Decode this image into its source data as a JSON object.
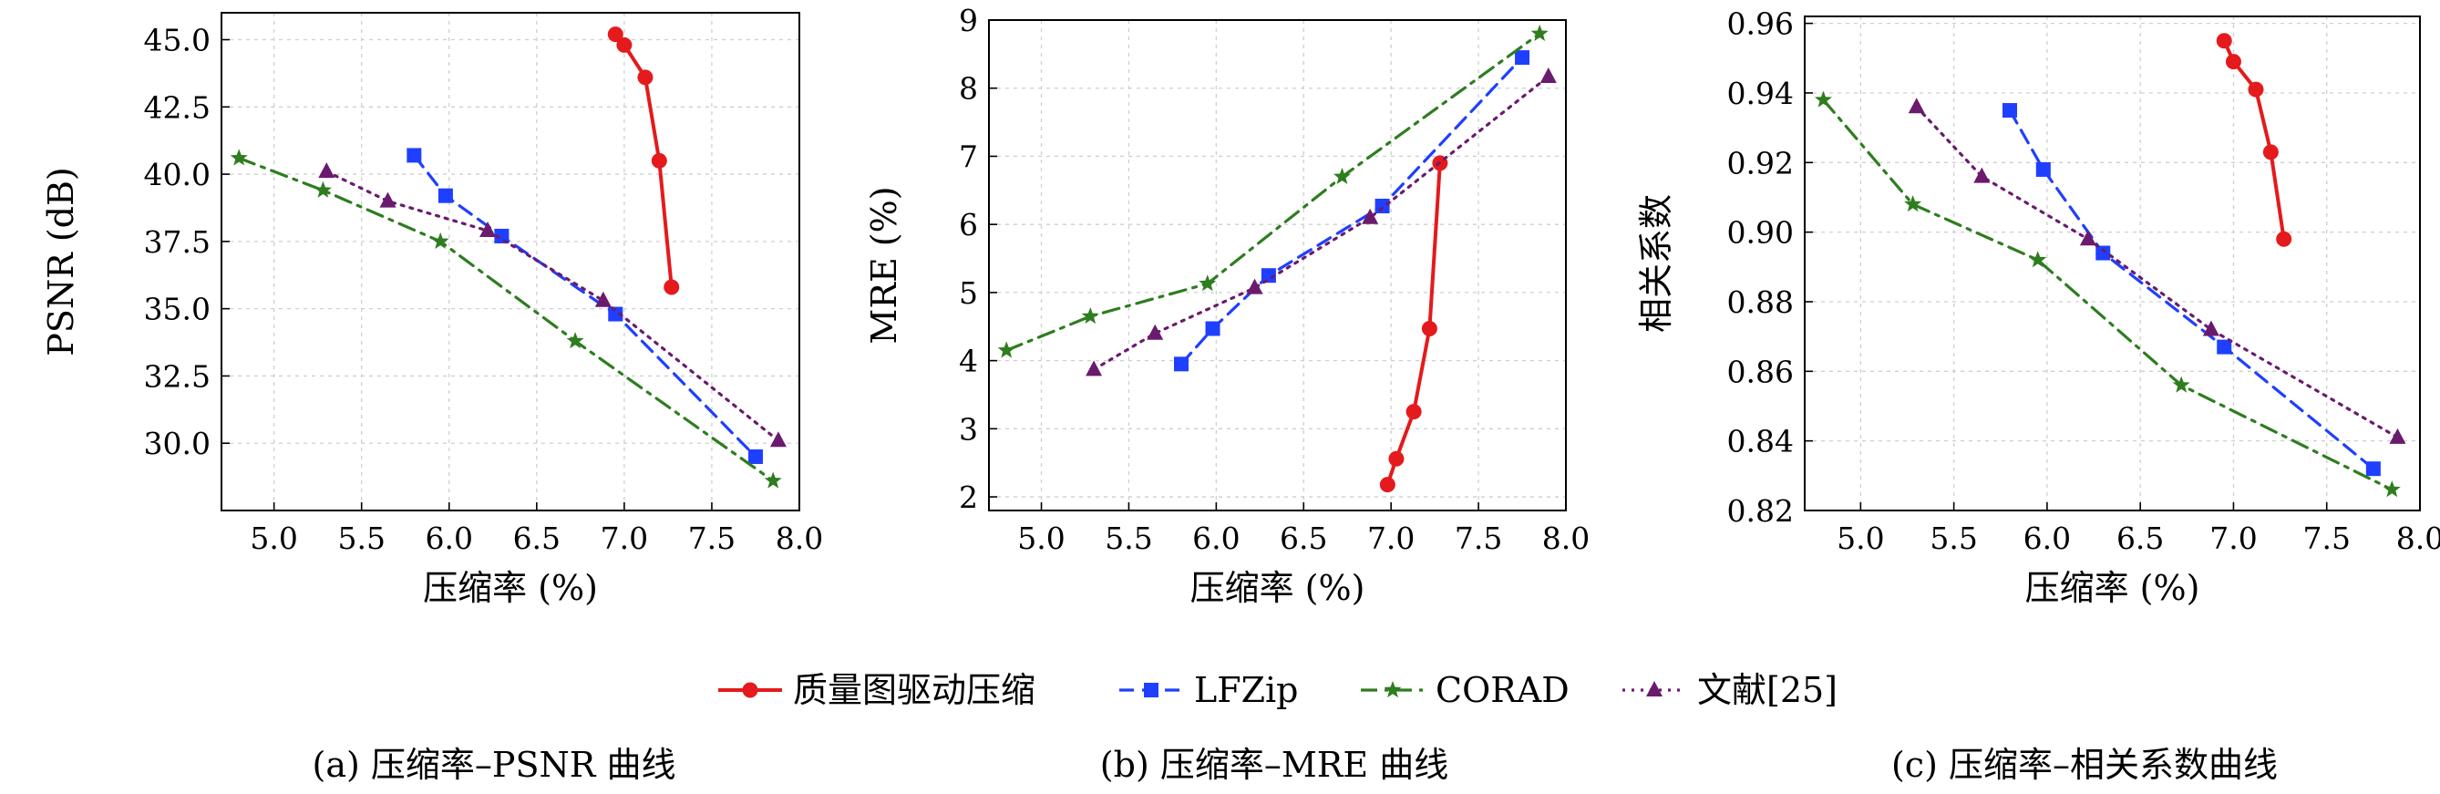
{
  "captions": [
    "(a) 压缩率–PSNR 曲线",
    "(b) 压缩率–MRE 曲线",
    "(c) 压缩率–相关系数曲线"
  ],
  "legend": [
    {
      "label": "质量图驱动压缩",
      "color": "#e41a1c",
      "marker": "circle",
      "dash": "solid"
    },
    {
      "label": "LFZip",
      "color": "#1f3fff",
      "marker": "square",
      "dash": "dashed"
    },
    {
      "label": "CORAD",
      "color": "#2e7d1f",
      "marker": "star",
      "dash": "dashdot"
    },
    {
      "label": "文献[25]",
      "color": "#6a1b6e",
      "marker": "triangle",
      "dash": "dotted"
    }
  ],
  "chart_data": [
    {
      "type": "line",
      "xlabel": "压缩率 (%)",
      "ylabel": "PSNR (dB)",
      "xlim": [
        4.7,
        8.0
      ],
      "ylim": [
        27.5,
        46.0
      ],
      "xticks": [
        "5.0",
        "5.5",
        "6.0",
        "6.5",
        "7.0",
        "7.5",
        "8.0"
      ],
      "yticks": [
        "30.0",
        "32.5",
        "35.0",
        "37.5",
        "40.0",
        "42.5",
        "45.0"
      ],
      "grid": true,
      "series": [
        {
          "name": "质量图驱动压缩",
          "x": [
            6.95,
            7.0,
            7.12,
            7.2,
            7.27
          ],
          "y": [
            45.2,
            44.8,
            43.6,
            40.5,
            35.8
          ]
        },
        {
          "name": "LFZip",
          "x": [
            5.8,
            5.98,
            6.3,
            6.95,
            7.75
          ],
          "y": [
            40.7,
            39.2,
            37.7,
            34.8,
            29.5
          ]
        },
        {
          "name": "CORAD",
          "x": [
            4.8,
            5.28,
            5.95,
            6.72,
            7.85
          ],
          "y": [
            40.6,
            39.4,
            37.5,
            33.8,
            28.6
          ]
        },
        {
          "name": "文献[25]",
          "x": [
            5.3,
            5.65,
            6.22,
            6.88,
            7.88
          ],
          "y": [
            40.1,
            39.0,
            37.9,
            35.3,
            30.1
          ]
        }
      ]
    },
    {
      "type": "line",
      "xlabel": "压缩率 (%)",
      "ylabel": "MRE (%)",
      "xlim": [
        4.7,
        8.0
      ],
      "ylim": [
        1.8,
        9.0
      ],
      "xticks": [
        "5.0",
        "5.5",
        "6.0",
        "6.5",
        "7.0",
        "7.5",
        "8.0"
      ],
      "yticks": [
        "2",
        "3",
        "4",
        "5",
        "6",
        "7",
        "8",
        "9"
      ],
      "grid": true,
      "series": [
        {
          "name": "质量图驱动压缩",
          "x": [
            6.98,
            7.03,
            7.13,
            7.22,
            7.28
          ],
          "y": [
            2.18,
            2.56,
            3.25,
            4.47,
            6.9
          ]
        },
        {
          "name": "LFZip",
          "x": [
            5.8,
            5.98,
            6.3,
            6.95,
            7.75
          ],
          "y": [
            3.95,
            4.47,
            5.25,
            6.27,
            8.45
          ]
        },
        {
          "name": "CORAD",
          "x": [
            4.8,
            5.28,
            5.95,
            6.72,
            7.85
          ],
          "y": [
            4.15,
            4.65,
            5.13,
            6.7,
            8.8
          ]
        },
        {
          "name": "文献[25]",
          "x": [
            5.3,
            5.65,
            6.22,
            6.88,
            7.9
          ],
          "y": [
            3.87,
            4.4,
            5.07,
            6.1,
            8.17
          ]
        }
      ]
    },
    {
      "type": "line",
      "xlabel": "压缩率 (%)",
      "ylabel": "相关系数",
      "xlim": [
        4.7,
        8.0
      ],
      "ylim": [
        0.82,
        0.962
      ],
      "xticks": [
        "5.0",
        "5.5",
        "6.0",
        "6.5",
        "7.0",
        "7.5",
        "8.0"
      ],
      "yticks": [
        "0.82",
        "0.84",
        "0.86",
        "0.88",
        "0.90",
        "0.92",
        "0.94",
        "0.96"
      ],
      "grid": true,
      "series": [
        {
          "name": "质量图驱动压缩",
          "x": [
            6.95,
            7.0,
            7.12,
            7.2,
            7.27
          ],
          "y": [
            0.955,
            0.949,
            0.941,
            0.923,
            0.898
          ]
        },
        {
          "name": "LFZip",
          "x": [
            5.8,
            5.98,
            6.3,
            6.95,
            7.75
          ],
          "y": [
            0.935,
            0.918,
            0.894,
            0.867,
            0.832
          ]
        },
        {
          "name": "CORAD",
          "x": [
            4.8,
            5.28,
            5.95,
            6.72,
            7.85
          ],
          "y": [
            0.938,
            0.908,
            0.892,
            0.856,
            0.826
          ]
        },
        {
          "name": "文献[25]",
          "x": [
            5.3,
            5.65,
            6.22,
            6.88,
            7.88
          ],
          "y": [
            0.936,
            0.916,
            0.898,
            0.872,
            0.841
          ]
        }
      ]
    }
  ]
}
